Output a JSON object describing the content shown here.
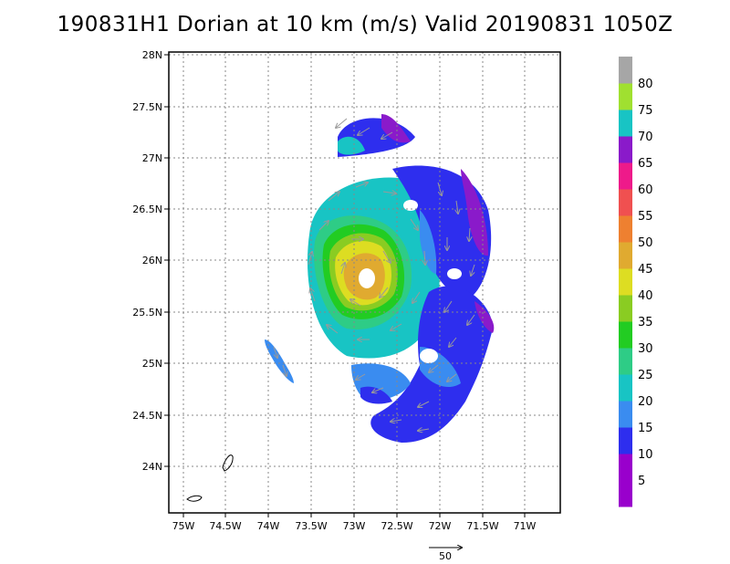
{
  "title": "190831H1 Dorian at 10 km (m/s) Valid 20190831  1050Z",
  "map": {
    "lat_labels": [
      "28N",
      "27.5N",
      "27N",
      "26.5N",
      "26N",
      "25.5N",
      "25N",
      "24.5N",
      "24N"
    ],
    "lon_labels": [
      "75W",
      "74.5W",
      "74W",
      "73.5W",
      "73W",
      "72.5W",
      "72W",
      "71.5W",
      "71W"
    ],
    "lat_range": [
      23.7,
      28.0
    ],
    "lon_range": [
      -75.1,
      -70.6
    ],
    "grid": true,
    "vector_scale_label": "50",
    "storm_center": {
      "lat": 25.8,
      "lon": -72.95
    }
  },
  "colorbar": {
    "labels": [
      "5",
      "10",
      "15",
      "20",
      "25",
      "30",
      "35",
      "40",
      "45",
      "50",
      "55",
      "60",
      "65",
      "70",
      "75",
      "80"
    ],
    "colors": [
      "#9900cc",
      "#2e2eee",
      "#3a8cf0",
      "#18c4c4",
      "#2ecc86",
      "#22cc22",
      "#8acc22",
      "#dddd22",
      "#e0aa30",
      "#ee8030",
      "#f05050",
      "#ee1a8a",
      "#8a1aca",
      "#18c4c4",
      "#a0e030",
      "#a6a6a6"
    ]
  }
}
